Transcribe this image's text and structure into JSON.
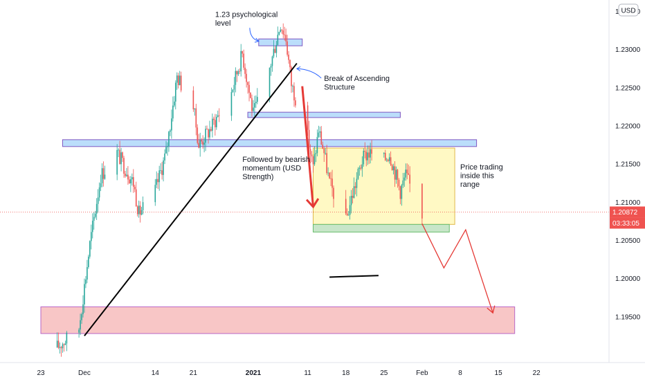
{
  "app": {
    "currency_button": "USD"
  },
  "chart_data": {
    "type": "candlestick",
    "instrument_currency": "USD",
    "ylim": [
      1.189,
      1.2365
    ],
    "y_ticks": [
      {
        "value": 1.235,
        "label": "1.23500"
      },
      {
        "value": 1.23,
        "label": "1.23000"
      },
      {
        "value": 1.225,
        "label": "1.22500"
      },
      {
        "value": 1.22,
        "label": "1.22000"
      },
      {
        "value": 1.215,
        "label": "1.21500"
      },
      {
        "value": 1.21,
        "label": "1.21000"
      },
      {
        "value": 1.205,
        "label": "1.20500"
      },
      {
        "value": 1.2,
        "label": "1.20000"
      },
      {
        "value": 1.195,
        "label": "1.19500"
      }
    ],
    "x_ticks": [
      {
        "label": "23",
        "date": "2020-11-23",
        "bold": false
      },
      {
        "label": "Dec",
        "date": "2020-12-01",
        "bold": false
      },
      {
        "label": "14",
        "date": "2020-12-14",
        "bold": false
      },
      {
        "label": "21",
        "date": "2020-12-21",
        "bold": false
      },
      {
        "label": "2021",
        "date": "2021-01-01",
        "bold": true
      },
      {
        "label": "11",
        "date": "2021-01-11",
        "bold": false
      },
      {
        "label": "18",
        "date": "2021-01-18",
        "bold": false
      },
      {
        "label": "25",
        "date": "2021-01-25",
        "bold": false
      },
      {
        "label": "Feb",
        "date": "2021-02-01",
        "bold": false
      },
      {
        "label": "8",
        "date": "2021-02-08",
        "bold": false
      },
      {
        "label": "15",
        "date": "2021-02-15",
        "bold": false
      },
      {
        "label": "22",
        "date": "2021-02-22",
        "bold": false
      }
    ],
    "current_price": {
      "label": "1.20872",
      "value": 1.20872,
      "countdown": "03:33:05",
      "color": "#ef5350"
    },
    "colors": {
      "up": "#26a69a",
      "down": "#ef5350"
    },
    "price_path": [
      {
        "date": "2020-11-26",
        "price": 1.191
      },
      {
        "date": "2020-11-30",
        "price": 1.1935
      },
      {
        "date": "2020-12-02",
        "price": 1.2045
      },
      {
        "date": "2020-12-04",
        "price": 1.2135
      },
      {
        "date": "2020-12-07",
        "price": 1.2165
      },
      {
        "date": "2020-12-10",
        "price": 1.2125
      },
      {
        "date": "2020-12-11",
        "price": 1.2085
      },
      {
        "date": "2020-12-14",
        "price": 1.2115
      },
      {
        "date": "2020-12-16",
        "price": 1.2165
      },
      {
        "date": "2020-12-18",
        "price": 1.2265
      },
      {
        "date": "2020-12-21",
        "price": 1.2225
      },
      {
        "date": "2020-12-22",
        "price": 1.2175
      },
      {
        "date": "2020-12-24",
        "price": 1.2195
      },
      {
        "date": "2020-12-28",
        "price": 1.2245
      },
      {
        "date": "2020-12-30",
        "price": 1.2295
      },
      {
        "date": "2021-01-01",
        "price": 1.2215
      },
      {
        "date": "2021-01-04",
        "price": 1.2275
      },
      {
        "date": "2021-01-06",
        "price": 1.2335
      },
      {
        "date": "2021-01-07",
        "price": 1.2315
      },
      {
        "date": "2021-01-08",
        "price": 1.2255
      },
      {
        "date": "2021-01-11",
        "price": 1.2185
      },
      {
        "date": "2021-01-12",
        "price": 1.2145
      },
      {
        "date": "2021-01-13",
        "price": 1.2195
      },
      {
        "date": "2021-01-14",
        "price": 1.2165
      },
      {
        "date": "2021-01-15",
        "price": 1.2125
      },
      {
        "date": "2021-01-18",
        "price": 1.2075
      },
      {
        "date": "2021-01-19",
        "price": 1.2105
      },
      {
        "date": "2021-01-21",
        "price": 1.2155
      },
      {
        "date": "2021-01-22",
        "price": 1.2165
      },
      {
        "date": "2021-01-25",
        "price": 1.2155
      },
      {
        "date": "2021-01-26",
        "price": 1.2165
      },
      {
        "date": "2021-01-28",
        "price": 1.2115
      },
      {
        "date": "2021-01-29",
        "price": 1.2135
      },
      {
        "date": "2021-02-01",
        "price": 1.2085
      }
    ],
    "zones": [
      {
        "name": "psychological-level-zone",
        "x0": "2021-01-02",
        "x1": "2021-01-10",
        "y0": 1.2305,
        "y1": 1.2314,
        "fill": "#bbdefb",
        "stroke": "#7e57c2"
      },
      {
        "name": "break-structure-zone",
        "x0": "2020-12-31",
        "x1": "2021-01-28",
        "y0": 1.2211,
        "y1": 1.2218,
        "fill": "#bbdefb",
        "stroke": "#7e57c2"
      },
      {
        "name": "resistance-zone",
        "x0": "2020-11-27",
        "x1": "2021-02-11",
        "y0": 1.2173,
        "y1": 1.2182,
        "fill": "#bbdefb",
        "stroke": "#7e57c2"
      },
      {
        "name": "range-box",
        "x0": "2021-01-12",
        "x1": "2021-02-07",
        "y0": 1.2071,
        "y1": 1.2171,
        "fill": "#fff9c4",
        "stroke": "#e0b84a"
      },
      {
        "name": "range-support-zone",
        "x0": "2021-01-12",
        "x1": "2021-02-06",
        "y0": 1.2061,
        "y1": 1.2071,
        "fill": "#c8e6c9",
        "stroke": "#66bb6a"
      },
      {
        "name": "demand-zone",
        "x0": "2020-11-23",
        "x1": "2021-02-18",
        "y0": 1.1928,
        "y1": 1.1963,
        "fill": "#f8c6c6",
        "stroke": "#b967c7"
      }
    ],
    "trendline": {
      "from": {
        "date": "2020-12-01",
        "price": 1.1925
      },
      "to": {
        "date": "2021-01-09",
        "price": 1.2282
      }
    },
    "black_segment": {
      "from": {
        "date": "2021-01-15",
        "price": 1.2002
      },
      "to": {
        "date": "2021-01-24",
        "price": 1.2004
      }
    },
    "bearish_arrow": {
      "from": {
        "date": "2021-01-10",
        "price": 1.2252
      },
      "to": {
        "date": "2021-01-12",
        "price": 1.2094
      }
    },
    "projection_path": [
      {
        "date": "2021-02-01",
        "price": 1.2072
      },
      {
        "date": "2021-02-05",
        "price": 1.2014
      },
      {
        "date": "2021-02-09",
        "price": 1.2064
      },
      {
        "date": "2021-02-14",
        "price": 1.1955
      }
    ],
    "annotations": [
      {
        "lines": [
          "1.23 psychological",
          "level"
        ],
        "date": "2020-12-25",
        "price": 1.2343,
        "arrow_to": {
          "date": "2021-01-02",
          "price": 1.2311
        }
      },
      {
        "lines": [
          "Break of Ascending",
          "Structure"
        ],
        "date": "2021-01-14",
        "price": 1.2259,
        "arrow_to": {
          "date": "2021-01-09",
          "price": 1.2275
        }
      },
      {
        "lines": [
          "Followed by bearish",
          "momentum (USD",
          "Strength)"
        ],
        "date": "2020-12-30",
        "price": 1.2153
      },
      {
        "lines": [
          "Price trading",
          "inside this",
          "range"
        ],
        "date": "2021-02-08",
        "price": 1.2143
      }
    ]
  }
}
